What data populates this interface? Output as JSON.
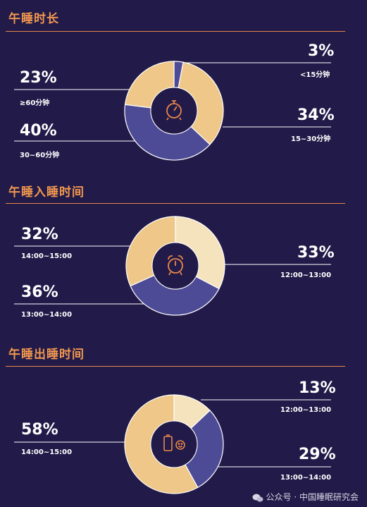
{
  "colors": {
    "background": "#221a48",
    "accent": "#f0974f",
    "gold": "#eec789",
    "blue": "#4e4b96",
    "cream": "#f5e3bd",
    "ring_stroke": "#ffffff"
  },
  "sections": [
    {
      "title": "午睡时长",
      "icon": "stopwatch-icon"
    },
    {
      "title": "午睡入睡时间",
      "icon": "alarm-clock-icon"
    },
    {
      "title": "午睡出睡时间",
      "icon": "battery-smile-icon"
    }
  ],
  "chart_data": [
    {
      "type": "pie",
      "title": "午睡时长",
      "slices": [
        {
          "label": "<15分钟",
          "value": 3,
          "display": "3%",
          "color": "#4e4b96"
        },
        {
          "label": "15~30分钟",
          "value": 34,
          "display": "34%",
          "color": "#eec789"
        },
        {
          "label": "30~60分钟",
          "value": 40,
          "display": "40%",
          "color": "#4e4b96"
        },
        {
          "label": "≥60分钟",
          "value": 23,
          "display": "23%",
          "color": "#eec789"
        }
      ]
    },
    {
      "type": "pie",
      "title": "午睡入睡时间",
      "slices": [
        {
          "label": "12:00~13:00",
          "value": 33,
          "display": "33%",
          "color": "#f5e3bd"
        },
        {
          "label": "13:00~14:00",
          "value": 36,
          "display": "36%",
          "color": "#4e4b96"
        },
        {
          "label": "14:00~15:00",
          "value": 32,
          "display": "32%",
          "color": "#eec789"
        }
      ]
    },
    {
      "type": "pie",
      "title": "午睡出睡时间",
      "slices": [
        {
          "label": "12:00~13:00",
          "value": 13,
          "display": "13%",
          "color": "#f5e3bd"
        },
        {
          "label": "13:00~14:00",
          "value": 29,
          "display": "29%",
          "color": "#4e4b96"
        },
        {
          "label": "14:00~15:00",
          "value": 58,
          "display": "58%",
          "color": "#eec789"
        }
      ]
    }
  ],
  "watermark": {
    "text": "公众号 · 中国睡眠研究会",
    "icon": "wechat-icon"
  }
}
